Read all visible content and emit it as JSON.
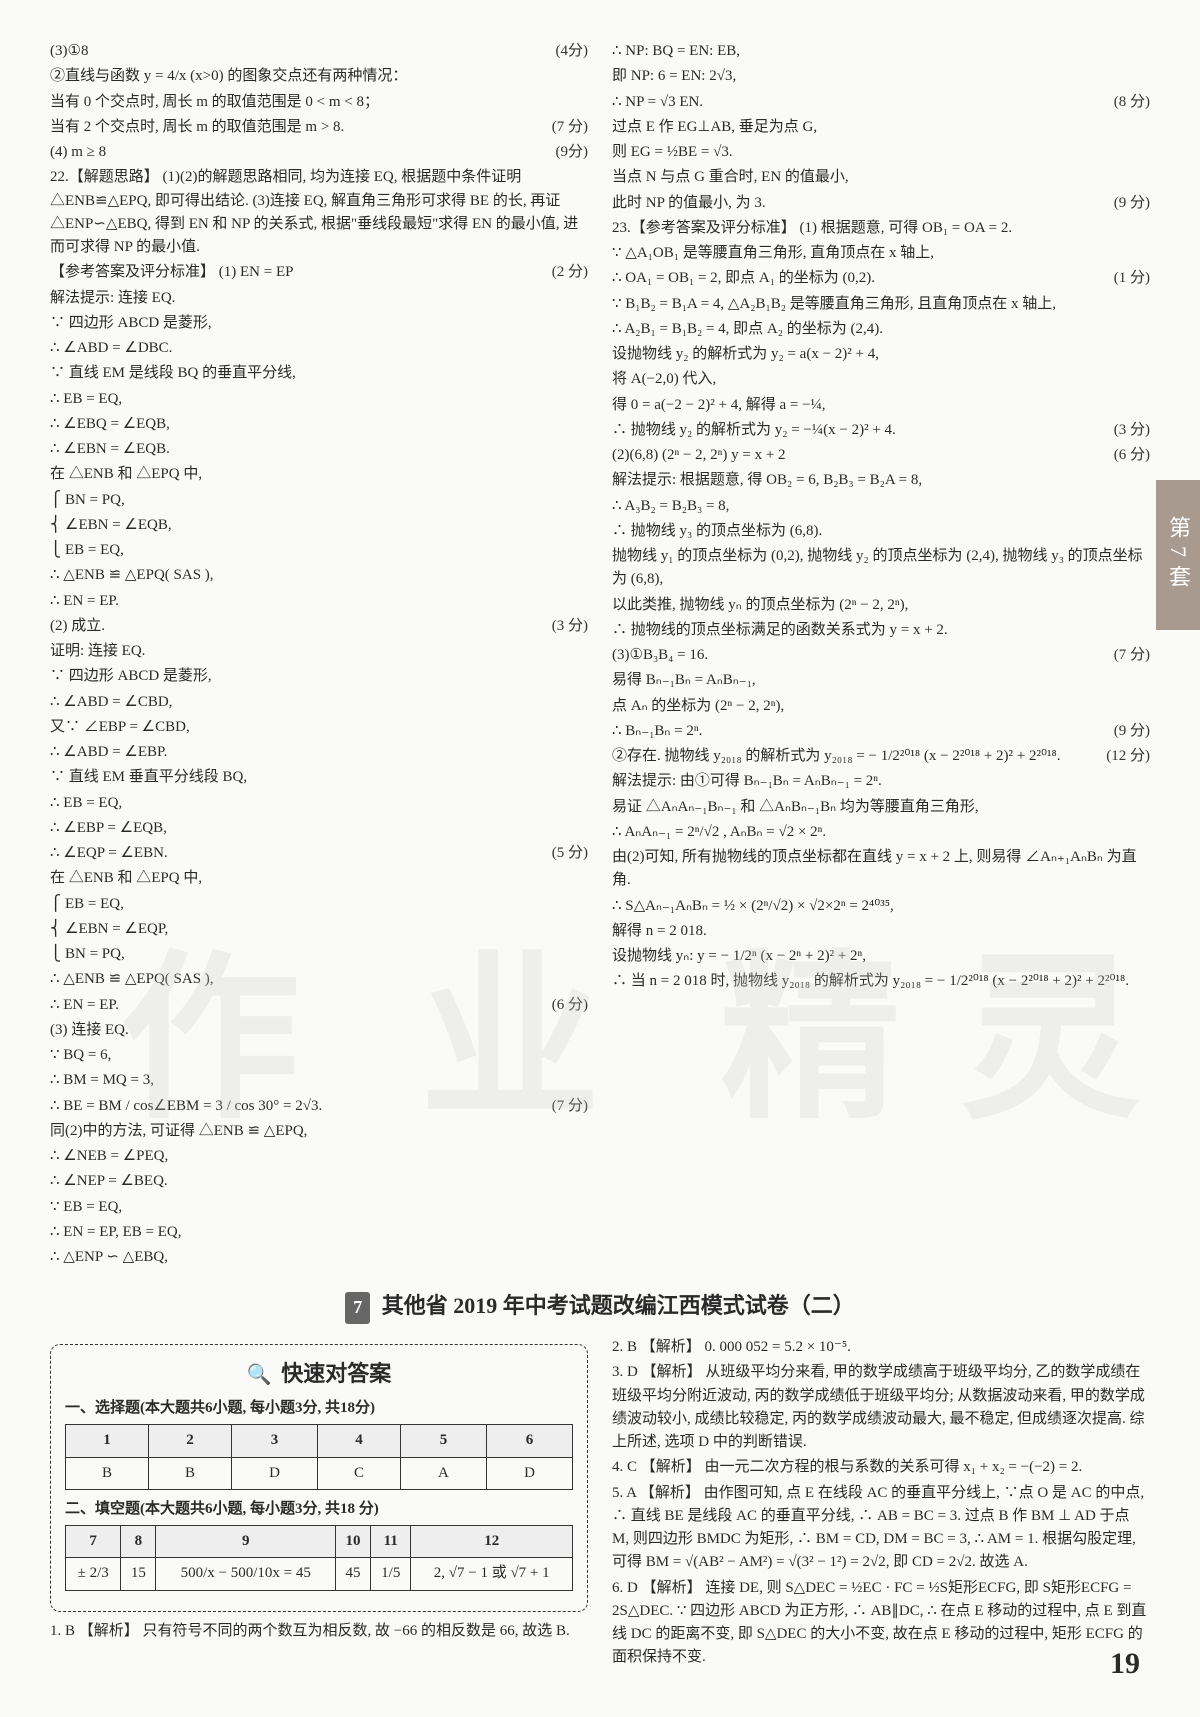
{
  "side_tab": "第7套",
  "page_number": "19",
  "section_header": {
    "num": "7",
    "title": "其他省 2019 年中考试题改编江西模式试卷（二）"
  },
  "watermark": [
    "作",
    "业",
    "精",
    "灵"
  ],
  "left_col": [
    {
      "t": "(3)①8",
      "s": "(4分)"
    },
    {
      "t": "②直线与函数 y = 4/x (x>0) 的图象交点还有两种情况："
    },
    {
      "t": "当有 0 个交点时, 周长 m 的取值范围是 0 < m < 8；"
    },
    {
      "t": "当有 2 个交点时, 周长 m 的取值范围是 m > 8.",
      "s": "(7 分)"
    },
    {
      "t": "(4) m ≥ 8",
      "s": "(9分)"
    },
    {
      "t": "22.【解题思路】 (1)(2)的解题思路相同, 均为连接 EQ, 根据题中条件证明 △ENB≌△EPQ, 即可得出结论. (3)连接 EQ, 解直角三角形可求得 BE 的长, 再证 △ENP∽△EBQ, 得到 EN 和 NP 的关系式, 根据\"垂线段最短\"求得 EN 的最小值, 进而可求得 NP 的最小值."
    },
    {
      "t": "【参考答案及评分标准】 (1) EN = EP",
      "s": "(2 分)"
    },
    {
      "t": "解法提示: 连接 EQ."
    },
    {
      "t": "∵ 四边形 ABCD 是菱形,"
    },
    {
      "t": "∴ ∠ABD = ∠DBC."
    },
    {
      "t": "∵ 直线 EM 是线段 BQ 的垂直平分线,"
    },
    {
      "t": "∴ EB = EQ,"
    },
    {
      "t": "∴ ∠EBQ = ∠EQB,"
    },
    {
      "t": "∴ ∠EBN = ∠EQB."
    },
    {
      "t": "在 △ENB 和 △EPQ 中,"
    },
    {
      "t": "⎧ BN = PQ,"
    },
    {
      "t": "⎨ ∠EBN = ∠EQB,"
    },
    {
      "t": "⎩ EB = EQ,"
    },
    {
      "t": "∴ △ENB ≌ △EPQ( SAS ),"
    },
    {
      "t": "∴ EN = EP."
    },
    {
      "t": "(2) 成立.",
      "s": "(3 分)"
    },
    {
      "t": "证明: 连接 EQ."
    },
    {
      "t": "∵ 四边形 ABCD 是菱形,"
    },
    {
      "t": "∴ ∠ABD = ∠CBD,"
    },
    {
      "t": "又∵ ∠EBP = ∠CBD,"
    },
    {
      "t": "∴ ∠ABD = ∠EBP."
    },
    {
      "t": "∵ 直线 EM 垂直平分线段 BQ,"
    },
    {
      "t": "∴ EB = EQ,"
    },
    {
      "t": "∴ ∠EBP = ∠EQB,"
    },
    {
      "t": "∴ ∠EQP = ∠EBN.",
      "s": "(5 分)"
    },
    {
      "t": "在 △ENB 和 △EPQ 中,"
    },
    {
      "t": "⎧ EB = EQ,"
    },
    {
      "t": "⎨ ∠EBN = ∠EQP,"
    },
    {
      "t": "⎩ BN = PQ,"
    },
    {
      "t": "∴ △ENB ≌ △EPQ( SAS ),"
    },
    {
      "t": "∴ EN = EP.",
      "s": "(6 分)"
    },
    {
      "t": "(3) 连接 EQ."
    },
    {
      "t": "∵ BQ = 6,"
    },
    {
      "t": "∴ BM = MQ = 3,"
    },
    {
      "t": "∴ BE = BM / cos∠EBM = 3 / cos 30° = 2√3.",
      "s": "(7 分)"
    },
    {
      "t": "同(2)中的方法, 可证得 △ENB ≌ △EPQ,"
    },
    {
      "t": "∴ ∠NEB = ∠PEQ,"
    },
    {
      "t": "∴ ∠NEP = ∠BEQ."
    },
    {
      "t": "∵ EB = EQ,"
    },
    {
      "t": "∴ EN = EP, EB = EQ,"
    },
    {
      "t": "∴ △ENP ∽ △EBQ,"
    }
  ],
  "right_col": [
    {
      "t": "∴ NP: BQ = EN: EB,"
    },
    {
      "t": "即 NP: 6 = EN: 2√3,"
    },
    {
      "t": "∴ NP = √3 EN.",
      "s": "(8 分)"
    },
    {
      "t": "过点 E 作 EG⊥AB, 垂足为点 G,"
    },
    {
      "t": "则 EG = ½BE = √3."
    },
    {
      "t": "当点 N 与点 G 重合时, EN 的值最小,"
    },
    {
      "t": "此时 NP 的值最小, 为 3.",
      "s": "(9 分)"
    },
    {
      "t": "23.【参考答案及评分标准】 (1) 根据题意, 可得 OB₁ = OA = 2."
    },
    {
      "t": "∵ △A₁OB₁ 是等腰直角三角形, 直角顶点在 x 轴上,"
    },
    {
      "t": "∴ OA₁ = OB₁ = 2, 即点 A₁ 的坐标为 (0,2).",
      "s": "(1 分)"
    },
    {
      "t": "∵ B₁B₂ = B₁A = 4, △A₂B₁B₂ 是等腰直角三角形, 且直角顶点在 x 轴上,"
    },
    {
      "t": "∴ A₂B₁ = B₁B₂ = 4, 即点 A₂ 的坐标为 (2,4)."
    },
    {
      "t": "设抛物线 y₂ 的解析式为 y₂ = a(x − 2)² + 4,"
    },
    {
      "t": "将 A(−2,0) 代入,"
    },
    {
      "t": "得 0 = a(−2 − 2)² + 4, 解得 a = −¼,"
    },
    {
      "t": "∴ 抛物线 y₂ 的解析式为 y₂ = −¼(x − 2)² + 4.",
      "s": "(3 分)"
    },
    {
      "t": "(2)(6,8)   (2ⁿ − 2, 2ⁿ)   y = x + 2",
      "s": "(6 分)"
    },
    {
      "t": "解法提示: 根据题意, 得 OB₂ = 6, B₂B₃ = B₂A = 8,"
    },
    {
      "t": "∴ A₃B₂ = B₂B₃ = 8,"
    },
    {
      "t": "∴ 抛物线 y₃ 的顶点坐标为 (6,8)."
    },
    {
      "t": "抛物线 y₁ 的顶点坐标为 (0,2), 抛物线 y₂ 的顶点坐标为 (2,4), 抛物线 y₃ 的顶点坐标为 (6,8),"
    },
    {
      "t": "以此类推, 抛物线 yₙ 的顶点坐标为 (2ⁿ − 2, 2ⁿ),"
    },
    {
      "t": "∴ 抛物线的顶点坐标满足的函数关系式为 y = x + 2."
    },
    {
      "t": "(3)①B₃B₄ = 16.",
      "s": "(7 分)"
    },
    {
      "t": "易得 Bₙ₋₁Bₙ = AₙBₙ₋₁,"
    },
    {
      "t": "点 Aₙ 的坐标为 (2ⁿ − 2, 2ⁿ),"
    },
    {
      "t": "∴ Bₙ₋₁Bₙ = 2ⁿ.",
      "s": "(9 分)"
    },
    {
      "t": "②存在. 抛物线 y₂₀₁₈ 的解析式为 y₂₀₁₈ = − 1/2²⁰¹⁸ (x − 2²⁰¹⁸ + 2)² + 2²⁰¹⁸.",
      "s": "(12 分)"
    },
    {
      "t": "解法提示: 由①可得 Bₙ₋₁Bₙ = AₙBₙ₋₁ = 2ⁿ."
    },
    {
      "t": "易证 △AₙAₙ₋₁Bₙ₋₁ 和 △AₙBₙ₋₁Bₙ 均为等腰直角三角形,"
    },
    {
      "t": "∴ AₙAₙ₋₁ = 2ⁿ/√2 , AₙBₙ = √2 × 2ⁿ."
    },
    {
      "t": "由(2)可知, 所有抛物线的顶点坐标都在直线 y = x + 2 上, 则易得 ∠Aₙ₊₁AₙBₙ 为直角."
    },
    {
      "t": "∴ S△Aₙ₋₁AₙBₙ = ½ × (2ⁿ/√2) × √2×2ⁿ = 2⁴⁰³⁵,"
    },
    {
      "t": "解得 n = 2 018."
    },
    {
      "t": "设抛物线 yₙ: y = − 1/2ⁿ (x − 2ⁿ + 2)² + 2ⁿ,"
    },
    {
      "t": "∴ 当 n = 2 018 时, 抛物线 y₂₀₁₈ 的解析式为 y₂₀₁₈ = − 1/2²⁰¹⁸ (x − 2²⁰¹⁸ + 2)² + 2²⁰¹⁸."
    }
  ],
  "answer_panel": {
    "title": "快速对答案",
    "sec1": "一、选择题(本大题共6小题, 每小题3分, 共18分)",
    "table1": {
      "head": [
        "1",
        "2",
        "3",
        "4",
        "5",
        "6"
      ],
      "row": [
        "B",
        "B",
        "D",
        "C",
        "A",
        "D"
      ]
    },
    "sec2": "二、填空题(本大题共6小题, 每小题3分, 共18 分)",
    "table2": {
      "head": [
        "7",
        "8",
        "9",
        "10",
        "11",
        "12"
      ],
      "row": [
        "± 2/3",
        "15",
        "500/x − 500/10x = 45",
        "45",
        "1/5",
        "2, √7 − 1 或 √7 + 1"
      ]
    }
  },
  "bottom_left": [
    {
      "t": "1. B 【解析】 只有符号不同的两个数互为相反数, 故 −66 的相反数是 66, 故选 B."
    }
  ],
  "bottom_right": [
    {
      "t": "2. B 【解析】 0. 000 052 = 5.2 × 10⁻⁵."
    },
    {
      "t": "3. D 【解析】 从班级平均分来看, 甲的数学成绩高于班级平均分, 乙的数学成绩在班级平均分附近波动, 丙的数学成绩低于班级平均分; 从数据波动来看, 甲的数学成绩波动较小, 成绩比较稳定, 丙的数学成绩波动最大, 最不稳定, 但成绩逐次提高. 综上所述, 选项 D 中的判断错误."
    },
    {
      "t": "4. C 【解析】 由一元二次方程的根与系数的关系可得 x₁ + x₂ = −(−2) = 2."
    },
    {
      "t": "5. A 【解析】 由作图可知, 点 E 在线段 AC 的垂直平分线上, ∵点 O 是 AC 的中点, ∴ 直线 BE 是线段 AC 的垂直平分线, ∴ AB = BC = 3. 过点 B 作 BM ⊥ AD 于点 M, 则四边形 BMDC 为矩形, ∴ BM = CD, DM = BC = 3, ∴ AM = 1. 根据勾股定理, 可得 BM = √(AB² − AM²) = √(3² − 1²) = 2√2, 即 CD = 2√2. 故选 A."
    },
    {
      "t": "6. D 【解析】 连接 DE, 则 S△DEC = ½EC · FC = ½S矩形ECFG, 即 S矩形ECFG = 2S△DEC. ∵ 四边形 ABCD 为正方形, ∴ AB∥DC, ∴ 在点 E 移动的过程中, 点 E 到直线 DC 的距离不变, 即 S△DEC 的大小不变, 故在点 E 移动的过程中, 矩形 ECFG 的面积保持不变."
    }
  ]
}
